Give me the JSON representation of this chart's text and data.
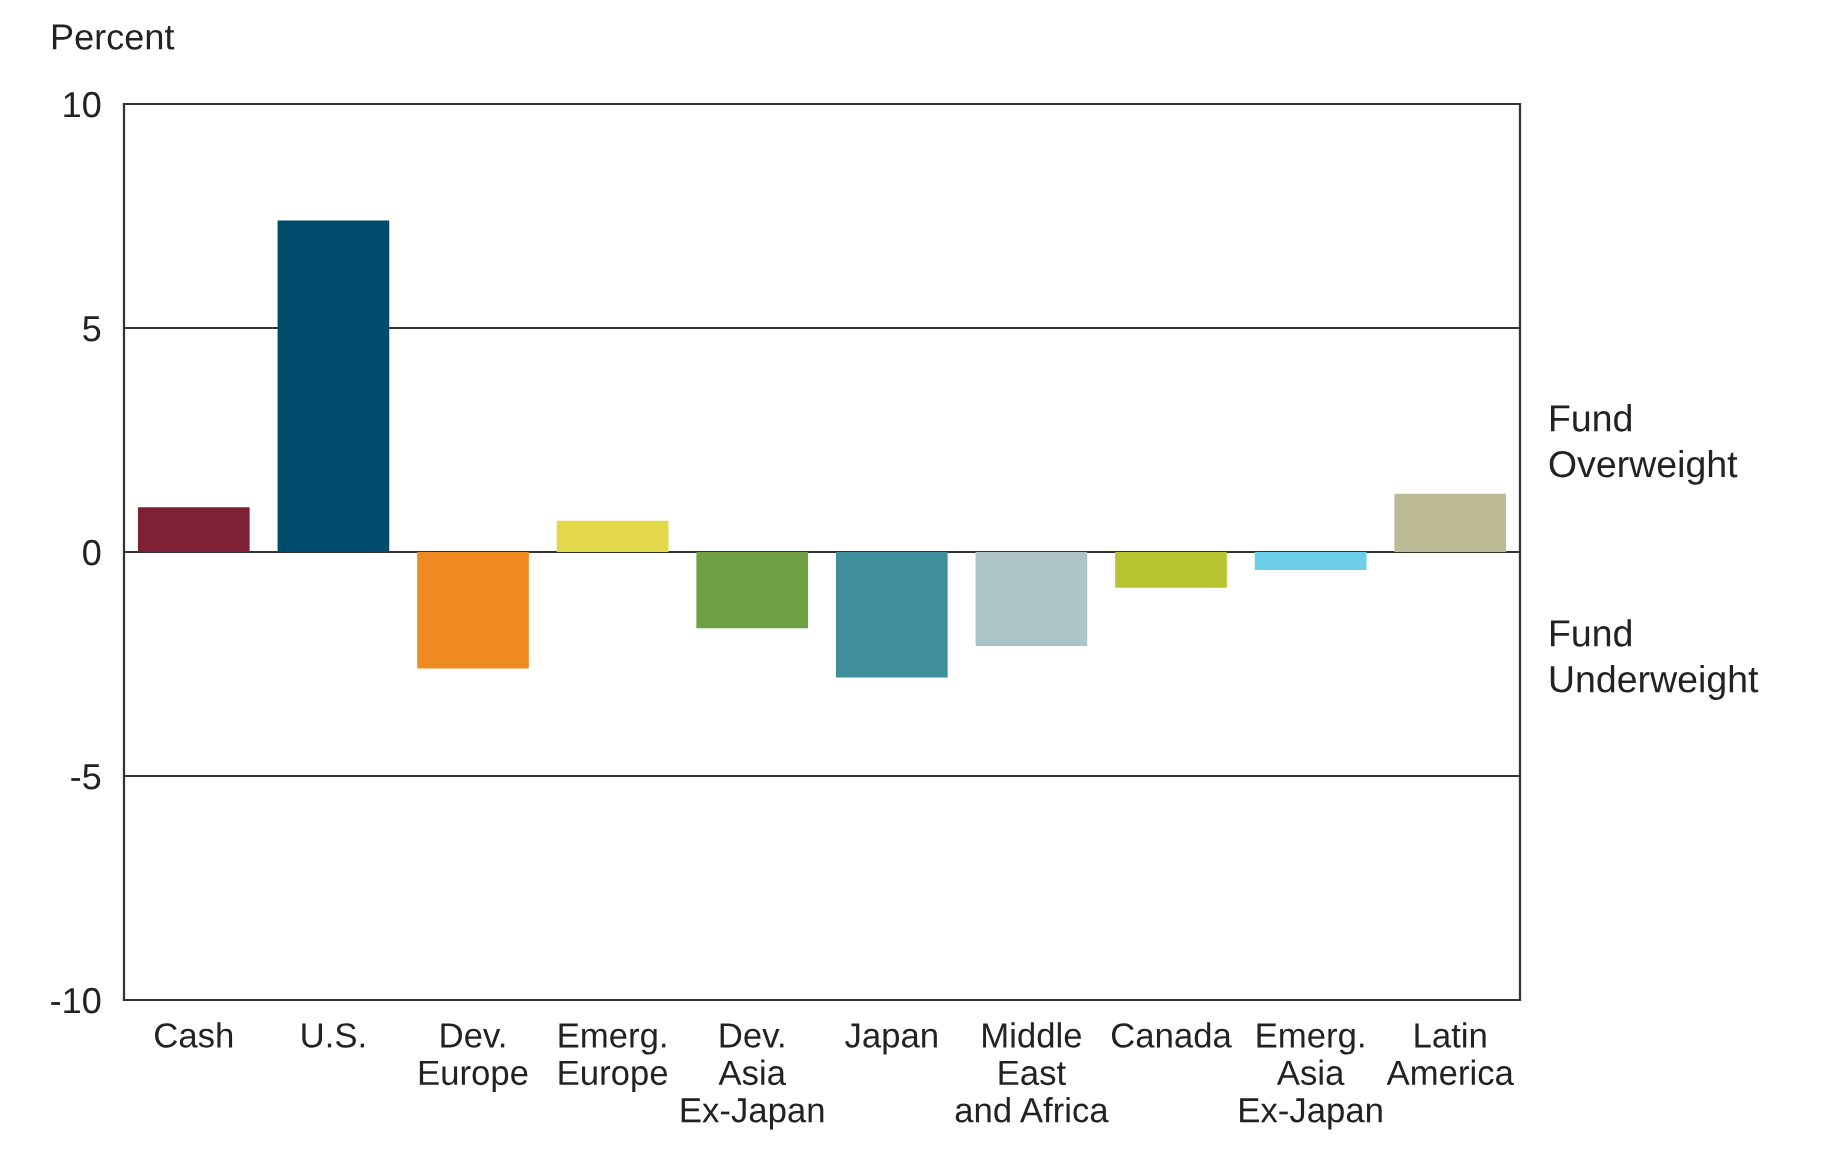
{
  "chart_data": {
    "type": "bar",
    "ylabel": "Percent",
    "categories": [
      "Cash",
      "U.S.",
      "Dev.\nEurope",
      "Emerg.\nEurope",
      "Dev.\nAsia\nEx-Japan",
      "Japan",
      "Middle\nEast\nand Africa",
      "Canada",
      "Emerg.\nAsia\nEx-Japan",
      "Latin\nAmerica"
    ],
    "values": [
      1.0,
      7.4,
      -2.6,
      0.7,
      -1.7,
      -2.8,
      -2.1,
      -0.8,
      -0.4,
      1.3
    ],
    "colors": [
      "#7f2035",
      "#004a6b",
      "#ef8a22",
      "#e2d84a",
      "#6fa043",
      "#3f8e9b",
      "#adc4c7",
      "#b5c42f",
      "#6ccde6",
      "#bcbb96"
    ],
    "ylim": [
      -10,
      10
    ],
    "yticks": [
      -10,
      -5,
      0,
      5,
      10
    ],
    "grid": "y",
    "annotations": [
      "Fund\nOverweight",
      "Fund\nUnderweight"
    ]
  }
}
